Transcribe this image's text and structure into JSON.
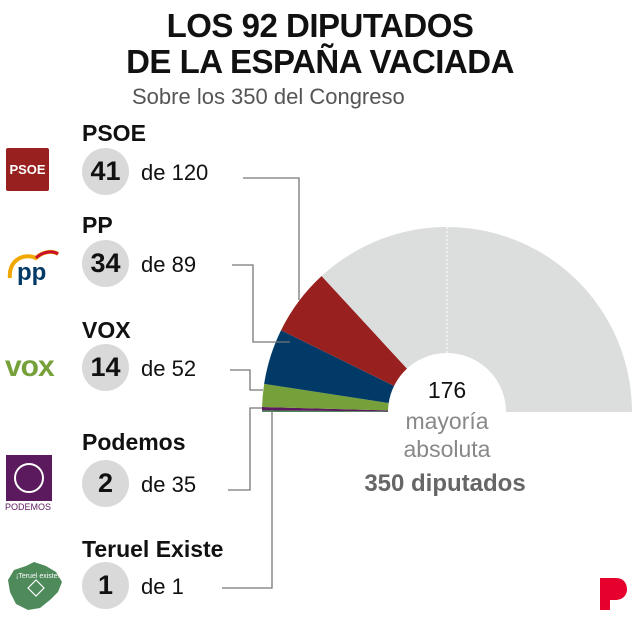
{
  "title_line1": "LOS 92 DIPUTADOS",
  "title_line2": "DE LA ESPAÑA VACIADA",
  "subtitle": "Sobre los 350 del Congreso",
  "center": {
    "majority_value": "176",
    "majority_line1": "mayoría",
    "majority_line2": "absoluta",
    "total": "350 diputados"
  },
  "colors": {
    "PSOE": "#98211f",
    "PP": "#013a66",
    "VOX": "#76a03a",
    "Podemos": "#5b1a5d",
    "Teruel Existe": "#4e8a5a",
    "rest": "#dcdddd",
    "brand": "#e5002d"
  },
  "chart_data": {
    "type": "parliament-semicircle",
    "total_seats": 350,
    "majority": 176,
    "series": [
      {
        "name": "Teruel Existe",
        "value": 1,
        "of": "de 1"
      },
      {
        "name": "Podemos",
        "value": 2,
        "of": "de 35"
      },
      {
        "name": "VOX",
        "value": 14,
        "of": "de 52"
      },
      {
        "name": "PP",
        "value": 34,
        "of": "de 89"
      },
      {
        "name": "PSOE",
        "value": 41,
        "of": "de 120"
      }
    ],
    "rest_seats": 258
  },
  "logos": {
    "psoe": "PSOE",
    "pp": "pp",
    "vox": "VOX",
    "podemos": "PODEMOS",
    "teruel": "¡Teruel existe!",
    "brand": "P"
  }
}
